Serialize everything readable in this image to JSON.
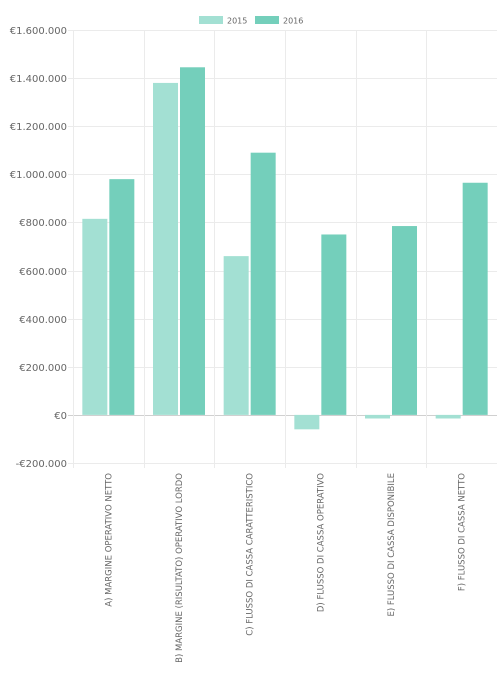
{
  "chart_data": {
    "type": "bar",
    "title": "",
    "xlabel": "",
    "ylabel": "",
    "categories": [
      "A) MARGINE OPERATIVO NETTO",
      "B) MARGINE (RISULTATO) OPERATIVO LORDO",
      "C) FLUSSO DI CASSA CARATTERISTICO",
      "D) FLUSSO DI CASSA OPERATIVO",
      "E) FLUSSO DI CASSA DISPONIBILE",
      "F) FLUSSO DI CASSA NETTO"
    ],
    "series": [
      {
        "name": "2015",
        "color": "#a3e0d3",
        "values": [
          815000,
          1380000,
          660000,
          -60000,
          -15000,
          -15000
        ]
      },
      {
        "name": "2016",
        "color": "#74cfbb",
        "values": [
          980000,
          1445000,
          1090000,
          750000,
          785000,
          965000
        ]
      }
    ],
    "ylim": [
      -200000,
      1600000
    ],
    "yticks": [
      1600000,
      1400000,
      1200000,
      1000000,
      800000,
      600000,
      400000,
      200000,
      0,
      -200000
    ],
    "ytick_labels": [
      "€1.600.000",
      "€1.400.000",
      "€1.200.000",
      "€1.000.000",
      "€800.000",
      "€600.000",
      "€400.000",
      "€200.000",
      "€0",
      "-€200.000"
    ],
    "grid": true,
    "legend_position": "top-center"
  }
}
